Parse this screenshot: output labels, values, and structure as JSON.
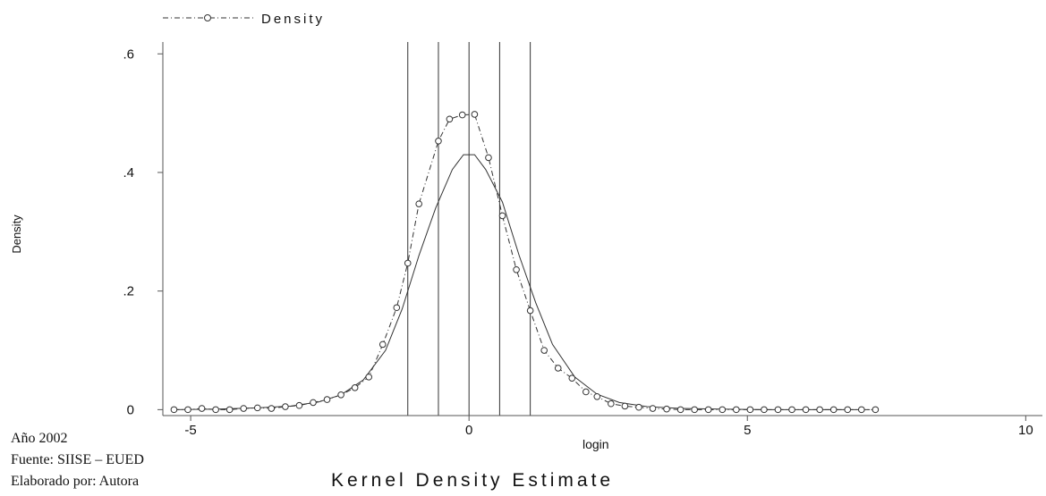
{
  "chart_data": {
    "type": "line",
    "title": "Kernel Density Estimate",
    "xlabel": "login",
    "ylabel": "Density",
    "xlim": [
      -5.5,
      10.3
    ],
    "ylim": [
      -0.01,
      0.62
    ],
    "xticks": [
      -5,
      0,
      5,
      10
    ],
    "xtick_labels": [
      "-5",
      "0",
      "5",
      "10"
    ],
    "yticks": [
      0,
      0.2,
      0.4,
      0.6
    ],
    "ytick_labels": [
      "0",
      ".2",
      ".4",
      ".6"
    ],
    "legend": {
      "position": "top-left",
      "entries": [
        "Density"
      ]
    },
    "vertical_lines": [
      -1.1,
      -0.55,
      0,
      0.55,
      1.1
    ],
    "series": [
      {
        "name": "Density",
        "marker": "circle",
        "x": [
          -5.3,
          -5.05,
          -4.8,
          -4.55,
          -4.3,
          -4.05,
          -3.8,
          -3.55,
          -3.3,
          -3.05,
          -2.8,
          -2.55,
          -2.3,
          -2.05,
          -1.8,
          -1.55,
          -1.3,
          -1.1,
          -0.9,
          -0.55,
          -0.35,
          -0.12,
          0.1,
          0.35,
          0.6,
          0.85,
          1.1,
          1.35,
          1.6,
          1.85,
          2.1,
          2.3,
          2.55,
          2.8,
          3.05,
          3.3,
          3.55,
          3.8,
          4.05,
          4.3,
          4.55,
          4.8,
          5.05,
          5.3,
          5.55,
          5.8,
          6.05,
          6.3,
          6.55,
          6.8,
          7.05,
          7.3
        ],
        "y": [
          0.0,
          0.0,
          0.002,
          0.0,
          0.0,
          0.002,
          0.003,
          0.002,
          0.005,
          0.007,
          0.012,
          0.017,
          0.025,
          0.037,
          0.055,
          0.11,
          0.172,
          0.247,
          0.347,
          0.453,
          0.49,
          0.497,
          0.498,
          0.425,
          0.327,
          0.236,
          0.167,
          0.1,
          0.07,
          0.053,
          0.03,
          0.022,
          0.01,
          0.006,
          0.004,
          0.002,
          0.001,
          0.0,
          0.0,
          0.0,
          0.0,
          0.0,
          0.0,
          0.0,
          0.0,
          0.0,
          0.0,
          0.0,
          0.0,
          0.0,
          0.0,
          0.0
        ]
      },
      {
        "name": "",
        "marker": "none",
        "x": [
          -5.3,
          -4.5,
          -3.8,
          -3.2,
          -2.7,
          -2.3,
          -1.9,
          -1.5,
          -1.2,
          -0.9,
          -0.6,
          -0.3,
          -0.1,
          0.1,
          0.3,
          0.6,
          0.9,
          1.2,
          1.5,
          1.9,
          2.3,
          2.7,
          3.2,
          3.8,
          4.5,
          5.3,
          6.2,
          7.2
        ],
        "y": [
          0.0,
          0.001,
          0.003,
          0.006,
          0.013,
          0.025,
          0.05,
          0.1,
          0.17,
          0.26,
          0.34,
          0.405,
          0.43,
          0.43,
          0.405,
          0.35,
          0.26,
          0.18,
          0.11,
          0.055,
          0.026,
          0.012,
          0.005,
          0.002,
          0.001,
          0.0,
          0.0,
          0.0
        ]
      }
    ]
  },
  "notes": {
    "year": "Año 2002",
    "source": "Fuente: SIISE – EUED",
    "author": "Elaborado por: Autora"
  }
}
